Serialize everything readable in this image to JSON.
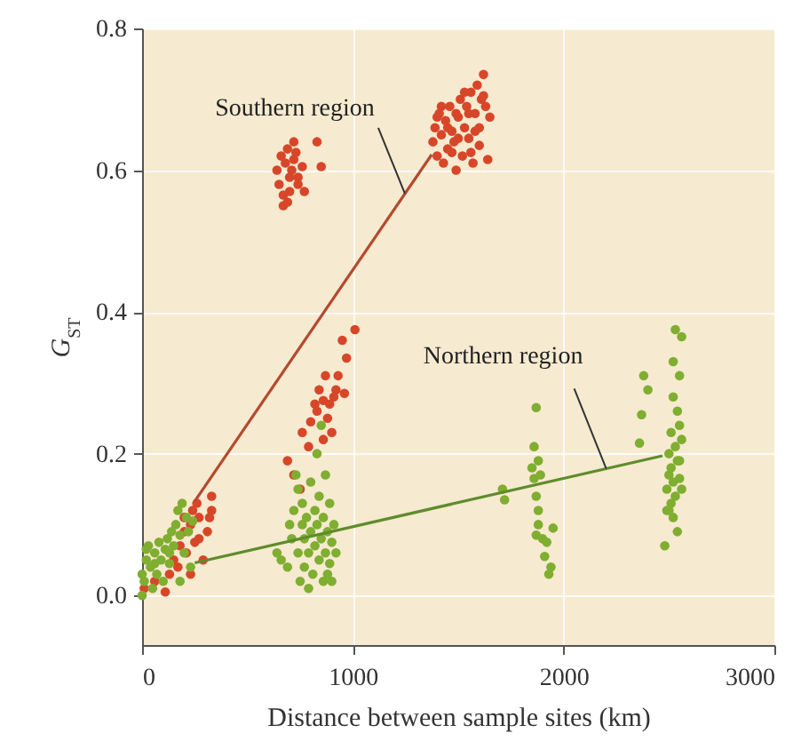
{
  "chart_data": {
    "type": "scatter",
    "xlabel": "Distance between sample sites (km)",
    "ylabel": "G$_{ST}$",
    "xlim": [
      0,
      3000
    ],
    "xticks": [
      0,
      1000,
      2000,
      3000
    ],
    "ylim": [
      -0.07,
      0.8
    ],
    "yticks": [
      {
        "value": 0,
        "label": "0.0"
      },
      0.2,
      0.4,
      0.6,
      0.8
    ],
    "grid": true,
    "marker": "circle",
    "annotations": [
      {
        "text": "Southern region",
        "x": 1247,
        "y": 0.567
      },
      {
        "text": "Northern region",
        "x": 2202,
        "y": 0.179
      }
    ],
    "series": [
      {
        "color": "#d8462a",
        "x": [
          10,
          60,
          110,
          130,
          150,
          170,
          180,
          200,
          210,
          230,
          240,
          260,
          270,
          270,
          290,
          310,
          320,
          330,
          330,
          200,
          230,
          250,
          640,
          650,
          660,
          670,
          670,
          680,
          690,
          700,
          700,
          710,
          720,
          720,
          740,
          760,
          770,
          830,
          850,
          690,
          730,
          740,
          690,
          720,
          750,
          760,
          790,
          800,
          820,
          840,
          830,
          860,
          870,
          880,
          890,
          900,
          910,
          920,
          930,
          950,
          960,
          970,
          1010,
          860,
          1380,
          1390,
          1400,
          1410,
          1420,
          1430,
          1440,
          1450,
          1460,
          1470,
          1480,
          1490,
          1500,
          1510,
          1520,
          1530,
          1540,
          1550,
          1560,
          1570,
          1580,
          1590,
          1600,
          1610,
          1620,
          1630,
          1640,
          1650,
          1450,
          1500,
          1550,
          1600,
          1420,
          1470,
          1530,
          1580,
          1620,
          1490,
          1560,
          1400
        ],
        "values": [
          0.01,
          0.02,
          0.005,
          0.03,
          0.05,
          0.04,
          0.07,
          0.09,
          0.06,
          0.1,
          0.12,
          0.13,
          0.11,
          0.08,
          0.05,
          0.09,
          0.11,
          0.14,
          0.12,
          0.11,
          0.03,
          0.075,
          0.6,
          0.58,
          0.62,
          0.55,
          0.565,
          0.61,
          0.63,
          0.59,
          0.57,
          0.6,
          0.64,
          0.615,
          0.59,
          0.605,
          0.57,
          0.64,
          0.605,
          0.555,
          0.625,
          0.58,
          0.19,
          0.17,
          0.15,
          0.23,
          0.21,
          0.245,
          0.27,
          0.29,
          0.26,
          0.275,
          0.31,
          0.25,
          0.27,
          0.23,
          0.28,
          0.29,
          0.31,
          0.36,
          0.285,
          0.335,
          0.375,
          0.22,
          0.64,
          0.66,
          0.62,
          0.68,
          0.65,
          0.61,
          0.67,
          0.63,
          0.69,
          0.655,
          0.64,
          0.6,
          0.675,
          0.7,
          0.62,
          0.66,
          0.69,
          0.645,
          0.71,
          0.61,
          0.68,
          0.72,
          0.66,
          0.7,
          0.735,
          0.69,
          0.615,
          0.675,
          0.66,
          0.645,
          0.68,
          0.635,
          0.69,
          0.625,
          0.71,
          0.655,
          0.705,
          0.68,
          0.625,
          0.675
        ]
      },
      {
        "color": "#7fae30",
        "x": [
          0,
          10,
          20,
          30,
          40,
          50,
          60,
          70,
          80,
          90,
          100,
          110,
          120,
          130,
          140,
          150,
          160,
          170,
          180,
          190,
          200,
          210,
          220,
          230,
          0,
          20,
          60,
          130,
          180,
          240,
          640,
          660,
          690,
          700,
          710,
          720,
          730,
          740,
          740,
          750,
          760,
          760,
          770,
          770,
          780,
          790,
          790,
          800,
          800,
          810,
          820,
          820,
          830,
          830,
          840,
          840,
          850,
          850,
          860,
          860,
          870,
          870,
          880,
          880,
          890,
          890,
          900,
          900,
          910,
          920,
          1710,
          1720,
          1850,
          1860,
          1870,
          1860,
          1870,
          1880,
          1880,
          1870,
          1900,
          1910,
          1920,
          1940,
          1930,
          1950,
          1880,
          1890,
          2360,
          2370,
          2380,
          2400,
          2480,
          2490,
          2490,
          2500,
          2500,
          2510,
          2510,
          2520,
          2520,
          2520,
          2530,
          2530,
          2530,
          2540,
          2540,
          2540,
          2550,
          2550,
          2550,
          2560,
          2560,
          2560,
          2500,
          2510,
          2520,
          2550
        ],
        "values": [
          0.0,
          0.02,
          0.05,
          0.07,
          0.04,
          0.01,
          0.06,
          0.03,
          0.075,
          0.05,
          0.02,
          0.065,
          0.08,
          0.045,
          0.09,
          0.07,
          0.1,
          0.12,
          0.085,
          0.13,
          0.06,
          0.11,
          0.09,
          0.04,
          0.03,
          0.065,
          0.045,
          0.06,
          0.02,
          0.105,
          0.06,
          0.05,
          0.04,
          0.1,
          0.08,
          0.12,
          0.17,
          0.15,
          0.06,
          0.02,
          0.1,
          0.13,
          0.04,
          0.08,
          0.11,
          0.01,
          0.06,
          0.09,
          0.16,
          0.03,
          0.07,
          0.12,
          0.1,
          0.2,
          0.05,
          0.14,
          0.24,
          0.08,
          0.02,
          0.11,
          0.17,
          0.06,
          0.09,
          0.03,
          0.13,
          0.045,
          0.075,
          0.02,
          0.1,
          0.06,
          0.15,
          0.135,
          0.18,
          0.21,
          0.265,
          0.165,
          0.14,
          0.12,
          0.1,
          0.085,
          0.08,
          0.055,
          0.075,
          0.04,
          0.03,
          0.095,
          0.19,
          0.17,
          0.215,
          0.255,
          0.31,
          0.29,
          0.07,
          0.12,
          0.15,
          0.17,
          0.2,
          0.13,
          0.18,
          0.28,
          0.33,
          0.16,
          0.21,
          0.14,
          0.375,
          0.26,
          0.09,
          0.19,
          0.24,
          0.31,
          0.165,
          0.365,
          0.15,
          0.22,
          0.12,
          0.23,
          0.11,
          0.19
        ]
      },
      {
        "type": "line",
        "marker": "none",
        "color": "#b34a30",
        "x": [
          250,
          1374
        ],
        "values": [
          0.133,
          0.622
        ]
      },
      {
        "type": "line",
        "marker": "none",
        "color": "#5e8c2c",
        "x": [
          250,
          2469
        ],
        "values": [
          0.046,
          0.197
        ]
      }
    ]
  }
}
